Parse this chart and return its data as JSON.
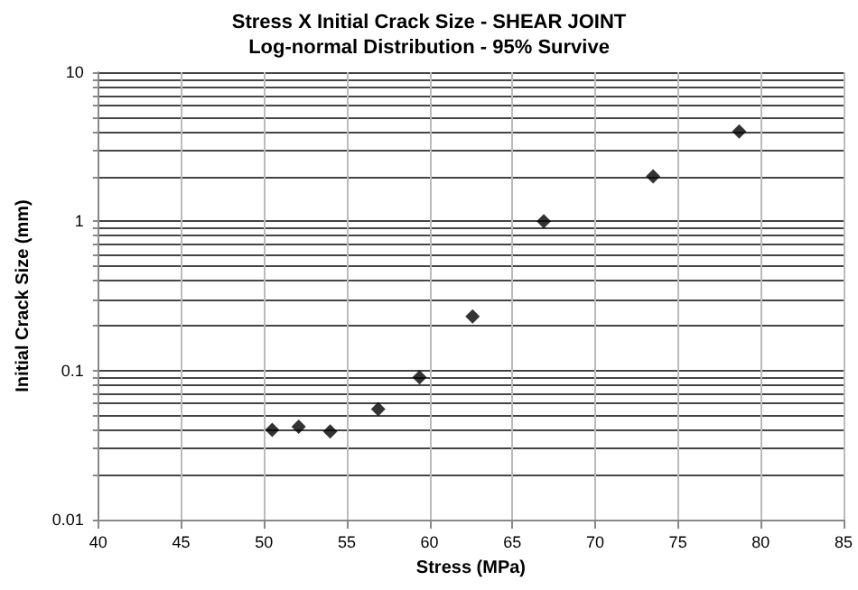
{
  "chart_data": {
    "type": "scatter",
    "title": "Stress X Initial Crack Size - SHEAR JOINT",
    "subtitle": "Log-normal Distribution - 95% Survive",
    "xlabel": "Stress (MPa)",
    "ylabel": "Initial Crack Size (mm)",
    "x": [
      50.5,
      52.1,
      54.0,
      56.9,
      59.4,
      62.6,
      66.9,
      73.5,
      78.7
    ],
    "values": [
      0.04,
      0.042,
      0.039,
      0.055,
      0.09,
      0.23,
      1.0,
      2.0,
      4.0
    ],
    "color": "#000000",
    "marker": "diamond",
    "log": "y",
    "grid": true,
    "xlim": [
      40,
      85
    ],
    "xticks": [
      40,
      45,
      50,
      55,
      60,
      65,
      70,
      75,
      80,
      85
    ],
    "ylim": [
      0.01,
      10
    ],
    "yticks": [
      0.01,
      0.1,
      1,
      10
    ]
  }
}
